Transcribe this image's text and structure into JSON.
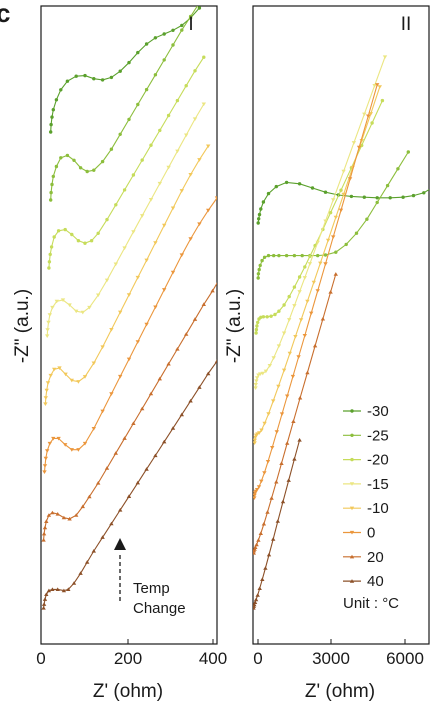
{
  "panel_letter": "c",
  "chart_data": [
    {
      "type": "line",
      "panel_label": "I",
      "xlabel": "Z' (ohm)",
      "ylabel": "-Z\" (a.u.)",
      "xlim": [
        0,
        400
      ],
      "xticks": [
        "0",
        "200",
        "400"
      ],
      "annotation": {
        "line1": "Temp",
        "line2": "Change"
      },
      "series": [
        {
          "name": "-30",
          "color": "#5aa02c",
          "marker": "circle",
          "offset": 7,
          "x": [
            22,
            23,
            25,
            28,
            35,
            45,
            60,
            80,
            100,
            120,
            140,
            160,
            180,
            200,
            220,
            240,
            260,
            280,
            300,
            320,
            340,
            360
          ],
          "y": [
            0.0,
            0.12,
            0.24,
            0.36,
            0.52,
            0.68,
            0.82,
            0.9,
            0.91,
            0.86,
            0.84,
            0.88,
            0.98,
            1.12,
            1.28,
            1.42,
            1.52,
            1.58,
            1.64,
            1.72,
            1.84,
            2.0
          ]
        },
        {
          "name": "-25",
          "color": "#8cbe3c",
          "marker": "circle",
          "offset": 6,
          "x": [
            22,
            23,
            25,
            28,
            35,
            45,
            60,
            75,
            90,
            105,
            120,
            140,
            160,
            180,
            200,
            220,
            240,
            260,
            280,
            300,
            320,
            340,
            360
          ],
          "y": [
            0.0,
            0.12,
            0.25,
            0.38,
            0.54,
            0.68,
            0.72,
            0.64,
            0.52,
            0.46,
            0.48,
            0.62,
            0.82,
            1.06,
            1.3,
            1.54,
            1.78,
            2.02,
            2.26,
            2.5,
            2.74,
            2.96,
            3.18
          ]
        },
        {
          "name": "-20",
          "color": "#c6dc5a",
          "marker": "circle",
          "offset": 5,
          "x": [
            18,
            19,
            21,
            24,
            30,
            40,
            55,
            70,
            85,
            100,
            115,
            130,
            150,
            170,
            190,
            210,
            230,
            250,
            270,
            290,
            310,
            330,
            350,
            370
          ],
          "y": [
            0.0,
            0.1,
            0.22,
            0.34,
            0.5,
            0.6,
            0.62,
            0.54,
            0.44,
            0.4,
            0.44,
            0.56,
            0.78,
            1.02,
            1.26,
            1.5,
            1.74,
            1.98,
            2.22,
            2.46,
            2.7,
            2.94,
            3.18,
            3.4
          ]
        },
        {
          "name": "-15",
          "color": "#ebe682",
          "marker": "triangle-down",
          "offset": 4,
          "x": [
            14,
            15,
            17,
            20,
            26,
            36,
            50,
            65,
            80,
            95,
            110,
            130,
            150,
            170,
            190,
            210,
            230,
            250,
            270,
            290,
            310,
            330,
            350,
            370
          ],
          "y": [
            0.0,
            0.1,
            0.22,
            0.34,
            0.46,
            0.56,
            0.58,
            0.5,
            0.4,
            0.38,
            0.46,
            0.66,
            0.9,
            1.16,
            1.42,
            1.68,
            1.94,
            2.2,
            2.46,
            2.72,
            2.98,
            3.24,
            3.5,
            3.74
          ]
        },
        {
          "name": "-10",
          "color": "#f2c85a",
          "marker": "triangle-down",
          "offset": 3,
          "x": [
            10,
            11,
            13,
            16,
            22,
            30,
            42,
            56,
            70,
            85,
            100,
            120,
            140,
            160,
            180,
            200,
            220,
            240,
            260,
            280,
            300,
            320,
            340,
            360,
            380
          ],
          "y": [
            0.0,
            0.1,
            0.22,
            0.34,
            0.46,
            0.56,
            0.58,
            0.48,
            0.38,
            0.36,
            0.44,
            0.66,
            0.92,
            1.2,
            1.48,
            1.76,
            2.04,
            2.32,
            2.6,
            2.88,
            3.16,
            3.44,
            3.7,
            3.94,
            4.16
          ]
        },
        {
          "name": "0",
          "color": "#eb963c",
          "marker": "triangle-down",
          "offset": 2,
          "x": [
            8,
            9,
            11,
            14,
            20,
            28,
            40,
            55,
            70,
            85,
            100,
            120,
            140,
            160,
            180,
            200,
            220,
            240,
            260,
            280,
            300,
            320,
            340,
            360,
            380,
            400
          ],
          "y": [
            0.0,
            0.1,
            0.22,
            0.34,
            0.46,
            0.54,
            0.54,
            0.44,
            0.36,
            0.36,
            0.46,
            0.7,
            0.98,
            1.26,
            1.54,
            1.82,
            2.1,
            2.38,
            2.66,
            2.94,
            3.22,
            3.5,
            3.76,
            4.0,
            4.22,
            4.42
          ]
        },
        {
          "name": "20",
          "color": "#c86e2d",
          "marker": "triangle-up",
          "offset": 1,
          "x": [
            6,
            7,
            9,
            12,
            18,
            26,
            38,
            52,
            65,
            80,
            95,
            110,
            130,
            150,
            170,
            190,
            210,
            230,
            250,
            270,
            290,
            310,
            330,
            350,
            370,
            390,
            405
          ],
          "y": [
            0.0,
            0.1,
            0.2,
            0.3,
            0.4,
            0.44,
            0.42,
            0.36,
            0.34,
            0.4,
            0.54,
            0.7,
            0.92,
            1.16,
            1.4,
            1.64,
            1.88,
            2.12,
            2.36,
            2.6,
            2.84,
            3.08,
            3.32,
            3.56,
            3.8,
            4.02,
            4.2
          ]
        },
        {
          "name": "40",
          "color": "#8c5028",
          "marker": "triangle-up",
          "offset": 0,
          "x": [
            6,
            7,
            9,
            12,
            18,
            26,
            38,
            52,
            62,
            75,
            90,
            105,
            120,
            140,
            160,
            180,
            200,
            220,
            240,
            260,
            280,
            300,
            320,
            340,
            360,
            380,
            400
          ],
          "y": [
            0.0,
            0.06,
            0.14,
            0.22,
            0.28,
            0.3,
            0.3,
            0.28,
            0.3,
            0.4,
            0.56,
            0.74,
            0.92,
            1.14,
            1.36,
            1.58,
            1.8,
            2.02,
            2.24,
            2.46,
            2.68,
            2.9,
            3.12,
            3.34,
            3.56,
            3.78,
            3.98
          ]
        }
      ]
    },
    {
      "type": "line",
      "panel_label": "II",
      "xlabel": "Z' (ohm)",
      "ylabel": "-Z\" (a.u.)",
      "xlim": [
        0,
        6800
      ],
      "xticks": [
        "0",
        "3000",
        "6000"
      ],
      "legend": {
        "position": "bottom-right",
        "unit_text": "Unit : ",
        "unit_symbol": "°C"
      },
      "series": [
        {
          "name": "-30",
          "color": "#5aa02c",
          "marker": "circle",
          "offset": 7,
          "x": [
            200,
            220,
            250,
            300,
            400,
            600,
            900,
            1300,
            1800,
            2300,
            2800,
            3300,
            3800,
            4300,
            4800,
            5300,
            5800,
            6200,
            6600,
            6900
          ],
          "y": [
            0.0,
            0.15,
            0.3,
            0.5,
            0.75,
            1.05,
            1.3,
            1.45,
            1.4,
            1.25,
            1.1,
            1.0,
            0.95,
            0.92,
            0.9,
            0.9,
            0.92,
            0.98,
            1.08,
            1.25
          ]
        },
        {
          "name": "-25",
          "color": "#8cbe3c",
          "marker": "circle",
          "offset": 6,
          "x": [
            200,
            210,
            240,
            280,
            350,
            450,
            600,
            800,
            1000,
            1300,
            1600,
            1900,
            2200,
            2500,
            2800,
            3200,
            3600,
            4000,
            4400,
            4800,
            5200,
            5600,
            6000
          ],
          "y": [
            0.0,
            0.15,
            0.3,
            0.45,
            0.62,
            0.74,
            0.8,
            0.8,
            0.8,
            0.8,
            0.8,
            0.8,
            0.8,
            0.8,
            0.82,
            0.92,
            1.2,
            1.6,
            2.1,
            2.7,
            3.3,
            3.9,
            4.5
          ]
        },
        {
          "name": "-20",
          "color": "#c6dc5a",
          "marker": "circle",
          "offset": 5,
          "x": [
            120,
            130,
            150,
            180,
            230,
            300,
            400,
            550,
            700,
            850,
            1000,
            1200,
            1400,
            1600,
            1800,
            2000,
            2200,
            2400,
            2700,
            3000,
            3400,
            3800,
            4200,
            4600,
            5000
          ],
          "y": [
            0.0,
            0.12,
            0.25,
            0.38,
            0.5,
            0.56,
            0.58,
            0.58,
            0.6,
            0.66,
            0.78,
            1.0,
            1.3,
            1.64,
            2.0,
            2.36,
            2.74,
            3.12,
            3.7,
            4.3,
            5.1,
            5.9,
            6.7,
            7.5,
            8.3
          ]
        },
        {
          "name": "-15",
          "color": "#ebe682",
          "marker": "triangle-down",
          "offset": 4,
          "x": [
            100,
            110,
            130,
            160,
            210,
            280,
            380,
            500,
            650,
            800,
            1000,
            1200,
            1400,
            1600,
            1800,
            2000,
            2200,
            2500,
            2800,
            3100,
            3500,
            3900,
            4300,
            4700,
            5100
          ],
          "y": [
            0.0,
            0.12,
            0.25,
            0.36,
            0.46,
            0.5,
            0.52,
            0.6,
            0.8,
            1.08,
            1.5,
            1.96,
            2.44,
            2.94,
            3.44,
            3.94,
            4.44,
            5.2,
            5.96,
            6.72,
            7.74,
            8.76,
            9.78,
            10.8,
            11.82
          ]
        },
        {
          "name": "-10",
          "color": "#f2c85a",
          "marker": "triangle-down",
          "offset": 3,
          "x": [
            60,
            70,
            90,
            120,
            170,
            240,
            330,
            450,
            600,
            780,
            980,
            1200,
            1420,
            1640,
            1860,
            2100,
            2350,
            2600,
            2900,
            3200,
            3500,
            3850,
            4200,
            4550,
            4900
          ],
          "y": [
            0.0,
            0.1,
            0.2,
            0.28,
            0.32,
            0.36,
            0.46,
            0.7,
            1.04,
            1.5,
            2.02,
            2.6,
            3.2,
            3.8,
            4.4,
            5.06,
            5.74,
            6.42,
            7.24,
            8.06,
            8.88,
            9.84,
            10.8,
            11.76,
            12.72
          ]
        },
        {
          "name": "0",
          "color": "#eb963c",
          "marker": "triangle-down",
          "offset": 2,
          "x": [
            50,
            60,
            80,
            110,
            160,
            230,
            320,
            440,
            580,
            740,
            920,
            1120,
            1320,
            1540,
            1760,
            2000,
            2250,
            2500,
            2800,
            3100,
            3400,
            3750,
            4100,
            4450,
            4800
          ],
          "y": [
            0.0,
            0.1,
            0.18,
            0.24,
            0.3,
            0.4,
            0.6,
            0.9,
            1.3,
            1.8,
            2.36,
            3.0,
            3.64,
            4.34,
            5.04,
            5.8,
            6.6,
            7.4,
            8.36,
            9.32,
            10.28,
            11.4,
            12.52,
            13.64,
            14.76
          ]
        },
        {
          "name": "20",
          "color": "#c86e2d",
          "marker": "triangle-up",
          "offset": 1,
          "x": [
            30,
            40,
            60,
            90,
            140,
            210,
            300,
            420,
            560,
            720,
            900,
            1100,
            1320,
            1560,
            1820,
            2100,
            2400,
            2700,
            3000,
            3200
          ],
          "y": [
            0.0,
            0.08,
            0.14,
            0.2,
            0.3,
            0.46,
            0.7,
            1.04,
            1.46,
            1.96,
            2.54,
            3.2,
            3.92,
            4.7,
            5.54,
            6.44,
            7.4,
            8.36,
            9.32,
            9.96
          ]
        },
        {
          "name": "40",
          "color": "#8c5028",
          "marker": "triangle-up",
          "offset": 0,
          "x": [
            20,
            30,
            50,
            80,
            120,
            180,
            260,
            360,
            480,
            620,
            780,
            960,
            1160,
            1380,
            1600,
            1800
          ],
          "y": [
            0.0,
            0.06,
            0.12,
            0.2,
            0.3,
            0.46,
            0.7,
            1.02,
            1.42,
            1.9,
            2.46,
            3.1,
            3.8,
            4.56,
            5.32,
            6.0
          ]
        }
      ]
    }
  ]
}
